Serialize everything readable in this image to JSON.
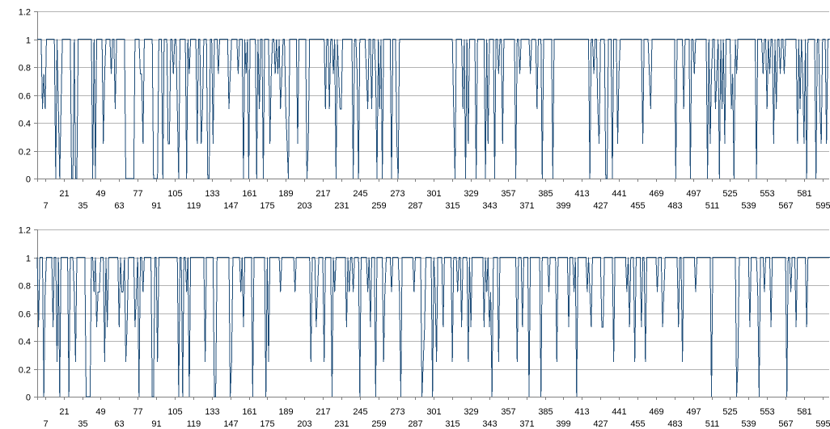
{
  "chart_data": [
    {
      "type": "line",
      "title": "",
      "xlabel": "",
      "ylabel": "",
      "ylim": [
        0,
        1.2
      ],
      "y_ticks": [
        "0",
        "0.2",
        "0.4",
        "0.6",
        "0.8",
        "1",
        "1.2"
      ],
      "xlim": [
        1,
        600
      ],
      "x_ticks_row1": [
        21,
        49,
        77,
        105,
        133,
        161,
        189,
        217,
        245,
        273,
        301,
        329,
        357,
        385,
        413,
        441,
        469,
        497,
        525,
        553,
        581
      ],
      "x_ticks_row2": [
        7,
        35,
        63,
        91,
        119,
        147,
        175,
        203,
        231,
        259,
        287,
        315,
        343,
        371,
        399,
        427,
        455,
        483,
        511,
        539,
        567,
        595
      ],
      "grid": "horizontal",
      "series_color": "#1f4e79",
      "series": [
        {
          "name": "",
          "values": "1 1 1 1 0.5 0.75 0.5 1 1 1 1 1 1 1 0 1 0.5 0 0.5 1 1 1 1 1 1 1 0 0 1 0 0 1 1 1 1 1 1 1 1 1 1 1 0 1 0 1 1 1 1 1 0.25 0.75 1 1 1 1 0.75 1 1 0.5 1 1 1 1 1 1 1 0 0 0 0 0 0 0 1 1 1 1 0.75 0.75 0.25 1 1 1 1 1 1 1 0 0 0 0 1 1 1 0 1 1 1 0.25 0.25 1 1 0.75 1 1 0.5 0 1 1 1 1 1 0 1 0.75 1 1 1 1 1 0.25 1 1 0.25 0.5 1 1 1 0 0 1 1 0.25 1 1 1 0.75 1 1 1 1 1 1 1 0.5 0.75 1 1 1 1 1 0.75 1 1 1 0 1 0.75 1 0 1 1 1 1 1 0 1 0.5 1 1 0 1 1 1 1 0.25 0.75 1 1 0.75 1 0.75 1 0.5 0.75 1 1 0.5 0.25 0 1 1 1 1 1 1 0.25 1 1 1 1 1 1 0 0.25 1 1 1 1 1 1 1 1 1 1 1 1 0.5 1 1 0.5 1 1 0.75 1 0 1 0.75 0.5 0.5 1 1 1 1 1 1 1 1 0 1 1 0.75 0 1 1 1 1 1 0.75 0.5 1 1 0.5 1 1 0.75 0 1 0.5 1 0 1 1 1 1 1 1 0 1 1 1 0.25 0 1 1 1 1 1 1 1 1 1 1 1 1 1 1 1 1 1 1 1 1 1 1 1 1 1 1 1 1 1 1 1 1 1 1 1 1 1 1 1 1 1 0.5 0 1 1 1 1 1 0.5 1 0 1 0.25 1 1 1 1 1 0 1 1 1 1 1 1 0 1 0.25 1 1 1 1 0 1 1 0.75 1 1 0.25 1 1 1 1 1 1 1 1 1 0 1 1 0.75 1 1 1 1 1 1 1 0.75 1 1 1 1 0.5 1 1 1 0 1 1 1 1 1 1 1 0 1 1 1 1 1 1 1 1 1 1 1 1 1 1 1 1 1 1 1 1 1 1 1 1 1 1 1 0 1 1 0.75 1 1 0.5 0.25 1 1 1 1 0 0 1 1 1 0 1 1 1 0.25 0.75 1 1 1 1 1 1 1 1 1 1 1 1 1 1 1 1 1 0.25 1 1 1 1 0.75 0.5 1 1 1 1 1 1 1 1 1 1 1 1 1 1 1 1 1 1 0 1 1 1 1 1 0.5 1 1 1 1 0 1 1 0.75 1 1 1 1 1 1 1 1 1 0 1 0.25 0.75 1 1 0.5 0.75 1 0 1 0.5 1 0.25 1 1 1 1 0.5 0.75 0 1 0.75 1 1 1 1 1 1 1 1 1 1 1 1 1 1 0 1 1 1 1 0.75 1 1 0.5 1 0.75 1 1 0.25 1 0.5 1 1 0.75 1 1 0.75 1 1 1 1 1 1 1 1 1 0.25 1 0.5 1 0.75 0.25 1 0 1 1 1 1 1 1 0 1 1 0.5 0.25 1 1 1 0.25 1 1 1 1 1 1 0 0.25 0.25 0 1 1 0.75 1 1 1 1 0 1 0.75 1 1 0.75 1 0.5 1 1 0 1 1 1 1 1 1"
        }
      ]
    },
    {
      "type": "line",
      "title": "",
      "xlabel": "",
      "ylabel": "",
      "ylim": [
        0,
        1.2
      ],
      "y_ticks": [
        "0",
        "0.2",
        "0.4",
        "0.6",
        "0.8",
        "1",
        "1.2"
      ],
      "xlim": [
        1,
        600
      ],
      "x_ticks_row1": [
        21,
        49,
        77,
        105,
        133,
        161,
        189,
        217,
        245,
        273,
        301,
        329,
        357,
        385,
        413,
        441,
        469,
        497,
        525,
        553,
        581
      ],
      "x_ticks_row2": [
        7,
        35,
        63,
        91,
        119,
        147,
        175,
        203,
        231,
        259,
        287,
        315,
        343,
        371,
        399,
        427,
        455,
        483,
        511,
        539,
        567,
        595
      ],
      "grid": "horizontal",
      "series_color": "#1f4e79",
      "series": [
        {
          "name": "",
          "values": "1 0.5 1 1 1 0 0.75 1 1 1 1 1 0.5 1 1 0.25 1 0 1 1 1 1 1 1 0 1 1 1 0.75 0.25 1 1 1 1 1 1 1 0 0 0 0 1 1 0.75 1 0.5 0.75 0.75 1 1 1 0.25 1 0.5 1 1 1 1 1 1 1 1 0.5 1 0.75 0.75 1 0.25 0.5 1 1 1 1 1 0.5 0.75 1 0 1 1 0.75 1 1 1 1 1 1 0 0 1 1 0.25 1 1 1 1 1 1 1 1 1 1 1 1 1 1 1 0 1 1 0 1 1 0.75 1 0 1 1 1 1 1 1 1 1 1 1 1 0.25 1 1 1 1 1 1 0 0 1 1 1 1 1 1 1 1 1 1 0 0.25 1 1 1 1 1 1 0.75 1 0.5 1 1 1 1 1 1 0 1 1 1 1 1 1 1 1 1 0 1 0.25 1 1 1 1 1 1 1 1 0.75 1 1 1 1 1 1 1 1 1 1 0.75 1 1 1 1 1 1 1 1 1 1 1 0.25 1 1 1 0.5 0.75 1 1 1 1 0.25 1 1 1 1 1 0 1 0.75 1 1 1 1 1 1 1 1 0.5 1 0.75 1 1 0.75 1 1 1 1 0 1 1 1 1 1 0.75 1 0.5 1 1 1 0 1 1 1 1 1 0.25 0.75 1 1 1 1 0.75 1 1 1 1 1 0.75 0 1 1 1 1 1 1 1 1 1 0.75 1 1 1 1 1 0 0.25 0.5 1 1 1 1 1 0 1 0.75 0.25 1 1 1 1 0.5 1 1 1 1 1 1 0.25 1 1 1 0.75 1 1 0.5 1 1 1 1 0.25 1 0.5 1 1 1 1 1 1 1 1 1 0.5 1 0.75 1 0.5 0.75 0 1 1 1 1 0.25 1 1 1 1 1 1 1 1 1 1 1 1 1 0.25 1 1 1 0.5 1 1 1 1 0 1 1 1 1 1 1 1 1 0 1 1 1 1 1 0.75 1 1 1 1 1 0.25 1 1 1 1 1 1 1 1 0.5 1 1 1 0.75 1 0 1 1 1 1 1 1 1 0.75 1 0.75 0.5 1 1 1 1 1 1 1 0.5 0.5 1 1 1 1 1 1 1 0.25 1 1 1 1 1 1 1 1 1 0.75 1 0.5 1 1 1 0.25 1 1 1 1 0.5 1 1 0.25 1 1 1 1 1 1 1 1 0.75 1 1 1 0.5 0.75 1 1 1 1 1 1 1 1 1 1 0.5 1 1 0.25 1 1 1 1 1 1 1 1 1 0.75 1 1 1 1 1 1 1 1 1 1 1 0 1 1 1 1 1 1 1 1 1 1 1 1 1 1 1 1 1 1 0 0.25 1 1 1 1 1 1 1 1 0.5 1 1 1 1 1 0.75 0 1 1 1 0.75 1 1 1 1 0.5 1 1 1 1 1 1 1 1 1 1 1 0 1 1 0.75 1 1 1 0.5 1 1 1 1 1 1 1 0.5 1 1 1 1 1 1 1 1 1 1 1 1 1 1 1 1 1 1 1 1 1 1 1 1 1 1 1 0.25 1 1 1 1 1 1 1 1 1 1 1 1 1 1 1 0 1 1 1 1 0.75 1 1 1 1 1 1 1 1 1 1 1 1"
        }
      ]
    }
  ]
}
